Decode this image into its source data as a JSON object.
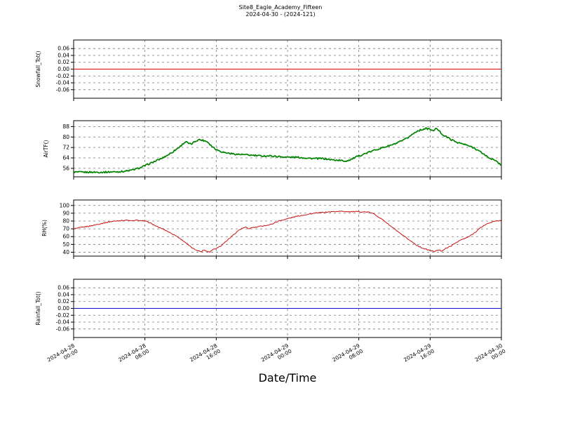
{
  "title": {
    "line1": "Site8_Eagle_Academy_Fifteen",
    "line2": "2024-04-30 - (2024-121)"
  },
  "x_axis": {
    "label": "Date/Time",
    "ticks_hours": [
      0,
      8,
      16,
      24,
      32,
      40,
      48
    ],
    "tick_labels": [
      [
        "2024-04-28",
        "00:00"
      ],
      [
        "2024-04-28",
        "08:00"
      ],
      [
        "2024-04-28",
        "16:00"
      ],
      [
        "2024-04-29",
        "00:00"
      ],
      [
        "2024-04-29",
        "08:00"
      ],
      [
        "2024-04-29",
        "16:00"
      ],
      [
        "2024-04-30",
        "00:00"
      ]
    ],
    "xlim_hours": [
      0,
      48
    ]
  },
  "chart_data": [
    {
      "id": "snowfall",
      "type": "line",
      "ylabel": "Snowfall_Tot()",
      "color": "#dd0000",
      "line_width": 1.1,
      "jitter": 0,
      "ylim": [
        -0.085,
        0.085
      ],
      "yticks": [
        0.06,
        0.04,
        0.02,
        0,
        -0.02,
        -0.04,
        -0.06
      ],
      "ytick_decimals": 2,
      "x": [
        0,
        48
      ],
      "y": [
        0,
        0
      ]
    },
    {
      "id": "airtf",
      "type": "line",
      "ylabel": "AirTF()",
      "color": "#008200",
      "line_width": 1.7,
      "jitter": 0.6,
      "ylim": [
        49.5,
        92.5
      ],
      "yticks": [
        88,
        80,
        72,
        64,
        56
      ],
      "ytick_decimals": 0,
      "x": [
        0,
        1,
        2,
        3,
        4,
        5,
        5.5,
        6,
        6.5,
        7,
        7.5,
        8,
        8.5,
        9,
        9.5,
        10,
        10.5,
        11,
        11.5,
        12,
        12.3,
        12.6,
        12.9,
        13.2,
        13.5,
        14,
        14.5,
        15,
        15.5,
        16,
        16.5,
        17,
        17.5,
        18,
        19,
        20,
        21,
        22,
        23,
        24,
        25,
        26,
        27,
        28,
        29,
        30,
        30.5,
        31,
        31.5,
        32,
        33,
        34,
        35,
        36,
        37,
        37.5,
        38,
        38.5,
        39,
        39.5,
        40,
        40.3,
        40.6,
        41,
        41.3,
        41.6,
        42,
        42.5,
        43,
        44,
        45,
        46,
        46.5,
        47,
        47.5,
        48
      ],
      "y": [
        53.2,
        53.0,
        53.1,
        53.0,
        53.2,
        53.4,
        53.6,
        54.0,
        54.6,
        55.5,
        56.5,
        58.0,
        59.5,
        61.0,
        62.5,
        64.0,
        66.0,
        68.0,
        70.5,
        73.0,
        75.0,
        76.5,
        75.0,
        74.5,
        76.0,
        78.0,
        77.5,
        76.5,
        73.0,
        70.5,
        69.0,
        68.0,
        67.5,
        67.0,
        66.5,
        66.0,
        65.5,
        65.5,
        65.0,
        64.5,
        64.5,
        64.0,
        63.5,
        63.5,
        62.5,
        62.0,
        61.5,
        62.5,
        64.0,
        65.5,
        68.0,
        70.5,
        72.5,
        74.5,
        77.5,
        79.5,
        82.0,
        84.5,
        85.5,
        86.5,
        86.0,
        84.5,
        86.5,
        85.0,
        82.5,
        81.0,
        79.5,
        77.5,
        76.0,
        74.0,
        71.5,
        67.0,
        64.5,
        63.0,
        61.0,
        58.5
      ]
    },
    {
      "id": "rh",
      "type": "line",
      "ylabel": "RH(%)",
      "color": "#cc1111",
      "line_width": 1.0,
      "jitter": 0.6,
      "ylim": [
        35,
        107
      ],
      "yticks": [
        100,
        90,
        80,
        70,
        60,
        50,
        40
      ],
      "ytick_decimals": 0,
      "x": [
        0,
        1,
        2,
        3,
        4,
        5,
        6,
        6.5,
        7,
        7.5,
        8,
        8.5,
        9,
        9.5,
        10,
        10.5,
        11,
        11.5,
        12,
        12.5,
        13,
        13.5,
        14,
        14.3,
        14.6,
        15,
        15.3,
        15.6,
        16,
        16.5,
        17,
        17.5,
        18,
        18.5,
        19,
        19.3,
        19.6,
        20,
        20.5,
        21,
        22,
        23,
        24,
        25,
        26,
        27,
        28,
        29,
        30,
        31,
        32,
        33,
        33.5,
        34,
        34.5,
        35,
        35.5,
        36,
        36.5,
        37,
        37.5,
        38,
        38.5,
        39,
        39.5,
        40,
        40.5,
        41,
        41.3,
        41.6,
        42,
        42.5,
        43,
        43.5,
        44,
        44.5,
        45,
        45.5,
        46,
        46.5,
        47,
        47.5,
        48
      ],
      "y": [
        70,
        72,
        74,
        76.5,
        79,
        80.5,
        81,
        80,
        81,
        80.5,
        80,
        78,
        75,
        72,
        70,
        67,
        64,
        61,
        57,
        53,
        48,
        44,
        42,
        40.5,
        43,
        41,
        40.5,
        43.5,
        45,
        48,
        53,
        58,
        63,
        68,
        71,
        72,
        70,
        71.5,
        72,
        73.5,
        75,
        80,
        83,
        86,
        88,
        90,
        91,
        92,
        92.5,
        92,
        92,
        91.5,
        90,
        87,
        83,
        79,
        74,
        70,
        65,
        61,
        57,
        53,
        49,
        46,
        44,
        42,
        41,
        43,
        41.5,
        44,
        46,
        49,
        53,
        56,
        58,
        61,
        65,
        70,
        74,
        77,
        79,
        80,
        81
      ]
    },
    {
      "id": "rainfall",
      "type": "line",
      "ylabel": "Rainfall_Tot()",
      "color": "#1111cc",
      "line_width": 1.0,
      "jitter": 0,
      "ylim": [
        -0.085,
        0.085
      ],
      "yticks": [
        0.06,
        0.04,
        0.02,
        0,
        -0.02,
        -0.04,
        -0.06
      ],
      "ytick_decimals": 2,
      "x": [
        0,
        48
      ],
      "y": [
        0,
        0
      ]
    }
  ]
}
